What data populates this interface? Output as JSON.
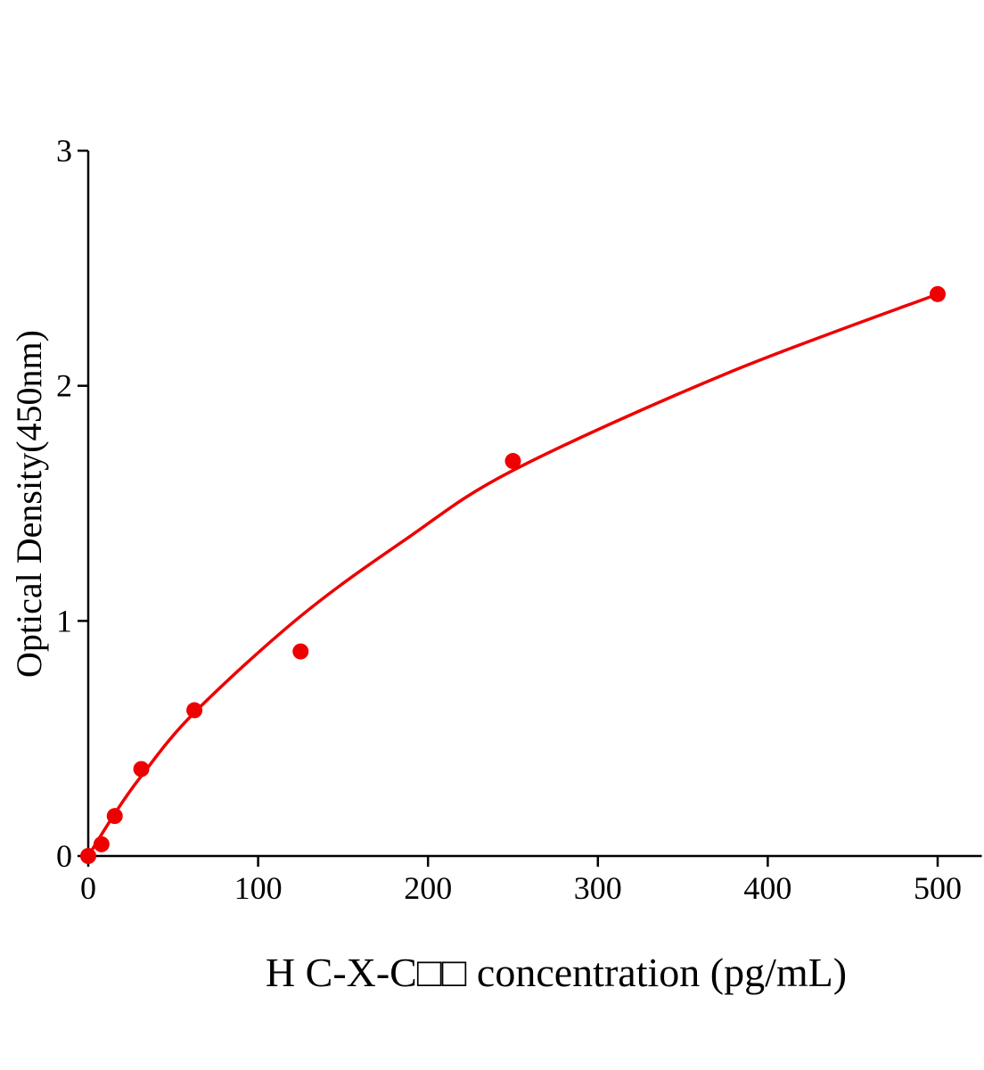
{
  "chart_data": {
    "type": "scatter",
    "title": "",
    "xlabel": "H C-X-C□□ concentration (pg/mL)",
    "ylabel": "Optical Density(450nm)",
    "xlim": [
      0,
      526
    ],
    "ylim": [
      0,
      3
    ],
    "xticks": [
      0,
      100,
      200,
      300,
      400,
      500
    ],
    "yticks": [
      0,
      1,
      2,
      3
    ],
    "grid": false,
    "legend": "none",
    "color": "#ee0000",
    "series": [
      {
        "points": [
          {
            "x": 0,
            "y": 0.0
          },
          {
            "x": 7.8,
            "y": 0.05
          },
          {
            "x": 15.6,
            "y": 0.17
          },
          {
            "x": 31.25,
            "y": 0.37
          },
          {
            "x": 62.5,
            "y": 0.62
          },
          {
            "x": 125,
            "y": 0.87
          },
          {
            "x": 250,
            "y": 1.68
          },
          {
            "x": 500,
            "y": 2.39
          }
        ],
        "fit_curve": [
          {
            "x": 0,
            "y": 0
          },
          {
            "x": 15.6,
            "y": 0.18
          },
          {
            "x": 31.25,
            "y": 0.34
          },
          {
            "x": 62.5,
            "y": 0.61
          },
          {
            "x": 125,
            "y": 1.02
          },
          {
            "x": 187.5,
            "y": 1.35
          },
          {
            "x": 250,
            "y": 1.64
          },
          {
            "x": 375,
            "y": 2.05
          },
          {
            "x": 500,
            "y": 2.39
          }
        ]
      }
    ]
  }
}
